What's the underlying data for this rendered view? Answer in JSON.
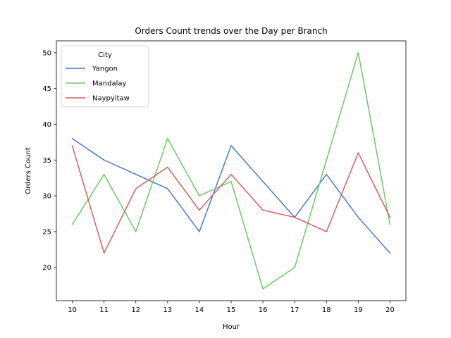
{
  "chart_data": {
    "type": "line",
    "title": "Orders Count trends over the Day per Branch",
    "xlabel": "Hour",
    "ylabel": "Orders Count",
    "x": [
      10,
      11,
      12,
      13,
      14,
      15,
      16,
      17,
      18,
      19,
      20
    ],
    "xlim": [
      9.5,
      20.5
    ],
    "ylim": [
      15.35,
      51.65
    ],
    "yticks": [
      20,
      25,
      30,
      35,
      40,
      45,
      50
    ],
    "legend": {
      "title": "City",
      "placement": "top-left"
    },
    "grid": false,
    "series": [
      {
        "name": "Yangon",
        "color": "#4878d0",
        "values": [
          38,
          35,
          33,
          31,
          25,
          37,
          32,
          27,
          33,
          27,
          22
        ]
      },
      {
        "name": "Mandalay",
        "color": "#6acc64",
        "values": [
          26,
          33,
          25,
          38,
          30,
          32,
          17,
          20,
          35,
          50,
          26
        ]
      },
      {
        "name": "Naypyitaw",
        "color": "#d65f5f",
        "values": [
          37,
          22,
          31,
          34,
          28,
          33,
          28,
          27,
          25,
          36,
          27
        ]
      }
    ]
  }
}
